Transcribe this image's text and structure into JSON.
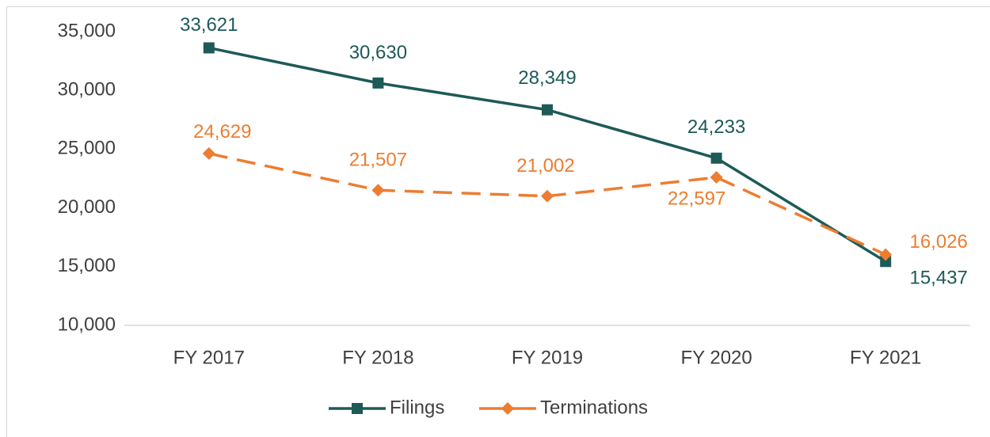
{
  "chart_data": {
    "type": "line",
    "categories": [
      "FY 2017",
      "FY 2018",
      "FY 2019",
      "FY 2020",
      "FY 2021"
    ],
    "series": [
      {
        "name": "Filings",
        "color": "#1d5a58",
        "marker": "square",
        "line_style": "solid",
        "values": [
          33621,
          30630,
          28349,
          24233,
          15437
        ],
        "value_labels": [
          "33,621",
          "30,630",
          "28,349",
          "24,233",
          "15,437"
        ]
      },
      {
        "name": "Terminations",
        "color": "#ed7d31",
        "marker": "diamond",
        "line_style": "dashed",
        "values": [
          24629,
          21507,
          21002,
          22597,
          16026
        ],
        "value_labels": [
          "24,629",
          "21,507",
          "21,002",
          "22,597",
          "16,026"
        ]
      }
    ],
    "ylim": [
      10000,
      35000
    ],
    "yticks": [
      {
        "value": 10000,
        "label": "10,000"
      },
      {
        "value": 15000,
        "label": "15,000"
      },
      {
        "value": 20000,
        "label": "20,000"
      },
      {
        "value": 25000,
        "label": "25,000"
      },
      {
        "value": 30000,
        "label": "30,000"
      },
      {
        "value": 35000,
        "label": "35,000"
      }
    ],
    "grid": false,
    "legend": "bottom"
  }
}
